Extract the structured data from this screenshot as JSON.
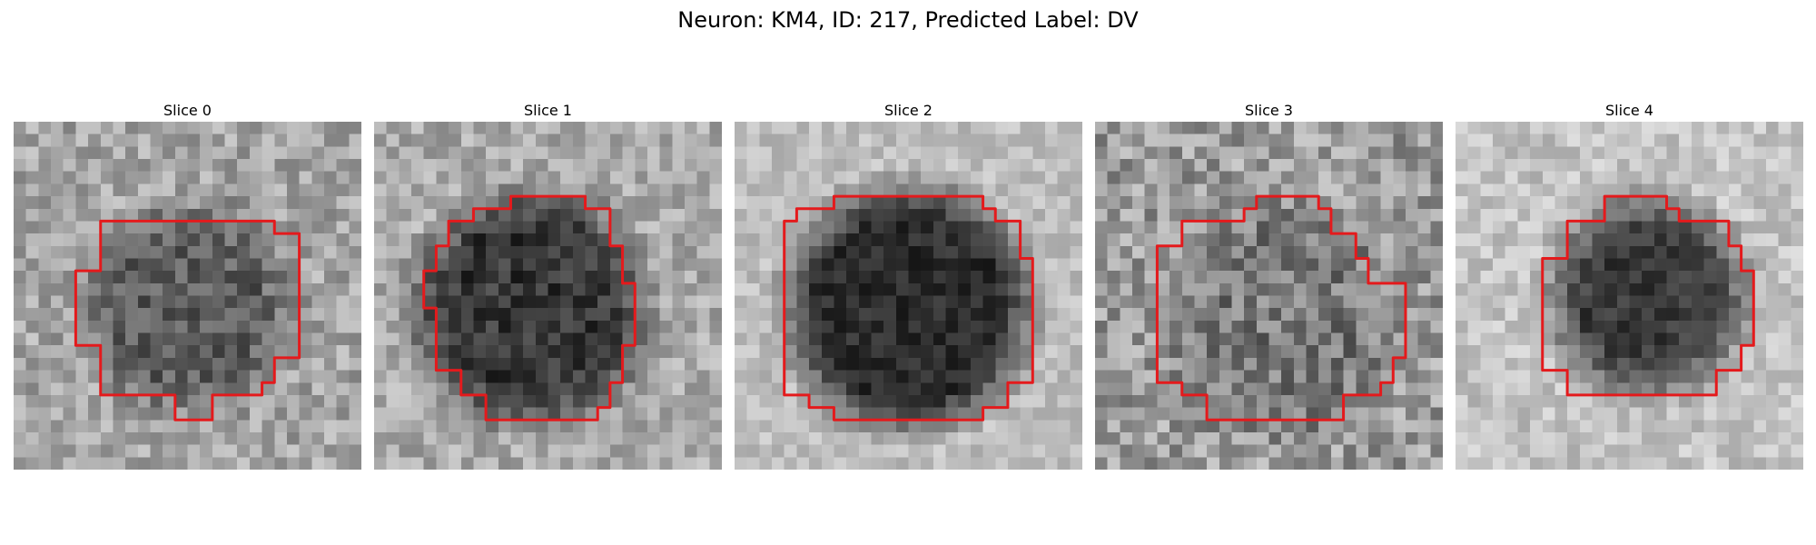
{
  "figure": {
    "title": "Neuron: KM4, ID: 217, Predicted Label: DV",
    "contour_color": "#e41a1c"
  },
  "panels": [
    {
      "title": "Slice 0"
    },
    {
      "title": "Slice 1"
    },
    {
      "title": "Slice 2"
    },
    {
      "title": "Slice 3"
    },
    {
      "title": "Slice 4"
    }
  ]
}
